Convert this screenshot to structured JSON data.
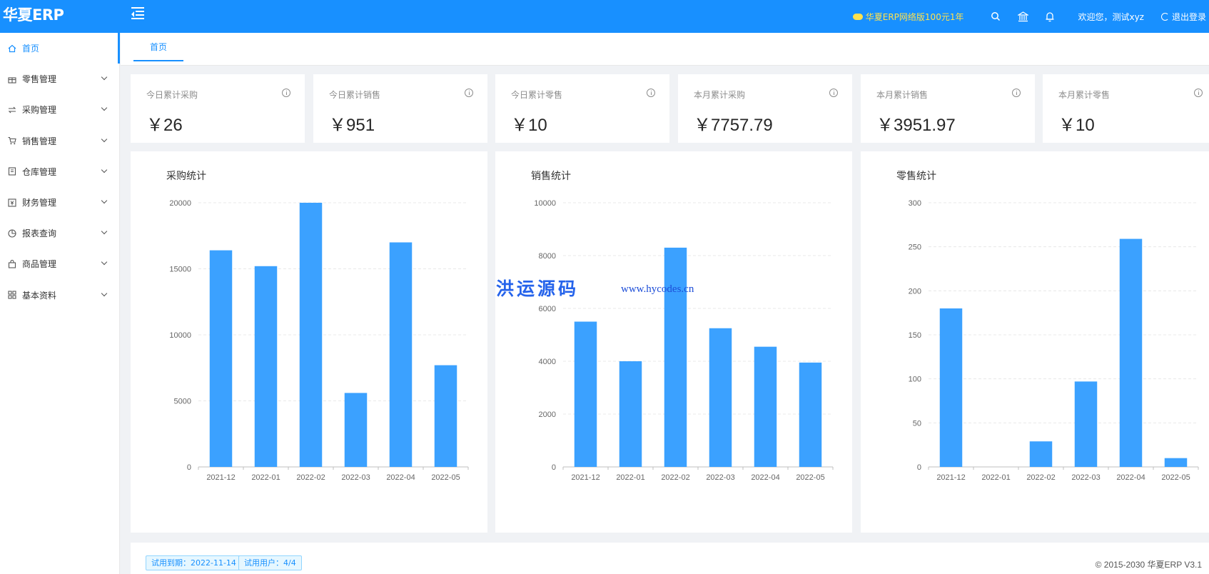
{
  "header": {
    "logo": "华夏ERP",
    "promo": "华夏ERP网络版100元1年",
    "welcome": "欢迎您，测试xyz",
    "logout": "退出登录"
  },
  "sidebar": {
    "items": [
      {
        "label": "首页",
        "icon": "home-icon"
      },
      {
        "label": "零售管理",
        "icon": "gift-icon"
      },
      {
        "label": "采购管理",
        "icon": "swap-icon"
      },
      {
        "label": "销售管理",
        "icon": "cart-icon"
      },
      {
        "label": "仓库管理",
        "icon": "book-icon"
      },
      {
        "label": "财务管理",
        "icon": "money-icon"
      },
      {
        "label": "报表查询",
        "icon": "pie-icon"
      },
      {
        "label": "商品管理",
        "icon": "bag-icon"
      },
      {
        "label": "基本资料",
        "icon": "grid-icon"
      }
    ]
  },
  "tabs": [
    {
      "label": "首页"
    }
  ],
  "stats": [
    {
      "label": "今日累计采购",
      "value": "￥26"
    },
    {
      "label": "今日累计销售",
      "value": "￥951"
    },
    {
      "label": "今日累计零售",
      "value": "￥10"
    },
    {
      "label": "本月累计采购",
      "value": "￥7757.79"
    },
    {
      "label": "本月累计销售",
      "value": "￥3951.97"
    },
    {
      "label": "本月累计零售",
      "value": "￥10"
    }
  ],
  "chart_data": [
    {
      "type": "bar",
      "title": "采购统计",
      "categories": [
        "2021-12",
        "2022-01",
        "2022-02",
        "2022-03",
        "2022-04",
        "2022-05"
      ],
      "values": [
        16400,
        15200,
        20000,
        5600,
        17000,
        7700
      ],
      "ylim": [
        0,
        20000
      ],
      "yticks": [
        0,
        5000,
        10000,
        15000,
        20000
      ],
      "color": "#3ba1ff"
    },
    {
      "type": "bar",
      "title": "销售统计",
      "categories": [
        "2021-12",
        "2022-01",
        "2022-02",
        "2022-03",
        "2022-04",
        "2022-05"
      ],
      "values": [
        5500,
        4000,
        8300,
        5250,
        4550,
        3950
      ],
      "ylim": [
        0,
        10000
      ],
      "yticks": [
        0,
        2000,
        4000,
        6000,
        8000,
        10000
      ],
      "color": "#3ba1ff"
    },
    {
      "type": "bar",
      "title": "零售统计",
      "categories": [
        "2021-12",
        "2022-01",
        "2022-02",
        "2022-03",
        "2022-04",
        "2022-05"
      ],
      "values": [
        180,
        0,
        29,
        97,
        259,
        10
      ],
      "ylim": [
        0,
        300
      ],
      "yticks": [
        0,
        50,
        100,
        150,
        200,
        250,
        300
      ],
      "color": "#3ba1ff"
    }
  ],
  "watermark": {
    "text": "洪运源码",
    "url": "www.hycodes.cn"
  },
  "footer": {
    "trial_expiry": "试用到期：2022-11-14",
    "trial_users": "试用用户：4/4",
    "copyright": "© 2015-2030 华夏ERP V3.1"
  }
}
